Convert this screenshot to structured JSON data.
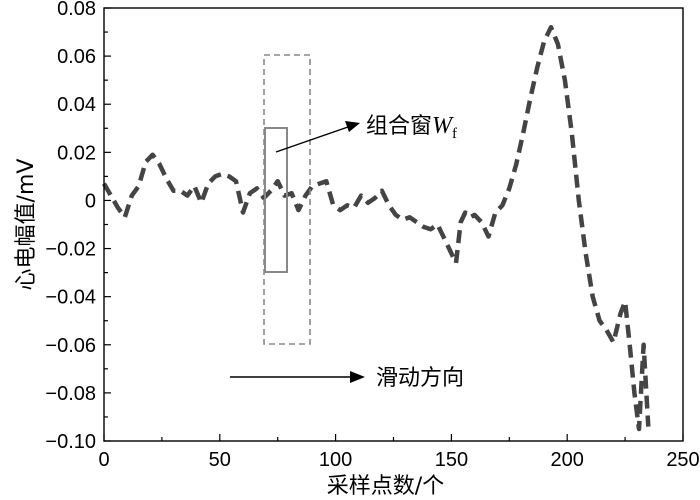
{
  "chart_data": {
    "type": "line",
    "xlabel": "采样点数/个",
    "ylabel": "心电幅值/mV",
    "xlim": [
      0,
      250
    ],
    "ylim": [
      -0.1,
      0.08
    ],
    "xticks": [
      0,
      50,
      100,
      150,
      200,
      250
    ],
    "xtick_labels": [
      "0",
      "50",
      "100",
      "150",
      "200",
      "250"
    ],
    "yticks": [
      0.08,
      0.06,
      0.04,
      0.02,
      0,
      -0.02,
      -0.04,
      -0.06,
      -0.08,
      -0.1
    ],
    "ytick_labels": [
      "0.08",
      "0.06",
      "0.04",
      "0.02",
      "0",
      "−0.02",
      "−0.04",
      "−0.06",
      "−0.08",
      "−0.10"
    ],
    "grid": false,
    "series": [
      {
        "color": "#444444",
        "x": [
          0,
          3,
          6,
          9,
          12,
          15,
          18,
          21,
          24,
          27,
          30,
          33,
          36,
          39,
          42,
          45,
          48,
          51,
          54,
          57,
          60,
          63,
          66,
          69,
          72,
          75,
          78,
          81,
          84,
          87,
          90,
          93,
          96,
          99,
          102,
          105,
          108,
          111,
          114,
          117,
          120,
          123,
          126,
          129,
          132,
          135,
          138,
          141,
          144,
          147,
          150,
          152,
          154,
          156,
          158,
          160,
          163,
          166,
          169,
          172,
          175,
          178,
          181,
          184,
          187,
          190,
          193,
          196,
          199,
          202,
          205,
          208,
          211,
          214,
          217,
          220,
          223,
          225,
          227,
          229,
          231,
          233,
          235
        ],
        "y": [
          0.007,
          0.002,
          -0.003,
          -0.007,
          0.002,
          0.006,
          0.016,
          0.019,
          0.015,
          0.009,
          0.004,
          0.004,
          0.002,
          0.006,
          -0.001,
          0.007,
          0.01,
          0.011,
          0.01,
          0.008,
          -0.005,
          0.003,
          0.005,
          0.001,
          0.004,
          0.008,
          0.002,
          0.003,
          -0.004,
          0.002,
          0.006,
          0.007,
          0.008,
          -0.002,
          -0.004,
          -0.002,
          -0.003,
          0.002,
          -0.001,
          0.001,
          0.004,
          -0.002,
          -0.006,
          -0.008,
          -0.007,
          -0.009,
          -0.011,
          -0.012,
          -0.01,
          -0.016,
          -0.022,
          -0.026,
          -0.009,
          -0.005,
          -0.007,
          -0.006,
          -0.009,
          -0.015,
          -0.005,
          -0.002,
          0.005,
          0.015,
          0.028,
          0.042,
          0.055,
          0.066,
          0.072,
          0.065,
          0.05,
          0.028,
          0.0,
          -0.022,
          -0.04,
          -0.05,
          -0.054,
          -0.059,
          -0.047,
          -0.042,
          -0.06,
          -0.08,
          -0.095,
          -0.06,
          -0.094
        ]
      }
    ],
    "annotations": [
      {
        "text": "组合窗",
        "symbol": "W",
        "subscript": "f"
      },
      {
        "text": "滑动方向"
      }
    ]
  }
}
